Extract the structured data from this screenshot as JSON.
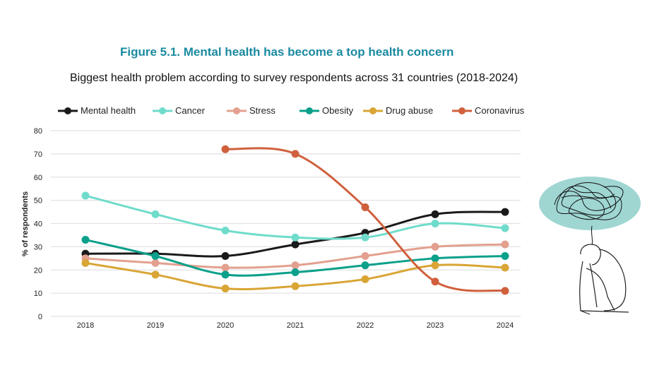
{
  "chart_data": {
    "type": "line",
    "title": "Figure 5.1. Mental health has become a top health concern",
    "subtitle": "Biggest health problem according to survey respondents across 31 countries (2018-2024)",
    "xlabel": "",
    "ylabel": "% of respondents",
    "ylim": [
      0,
      80
    ],
    "yticks": [
      "0",
      "10",
      "20",
      "30",
      "40",
      "50",
      "60",
      "70",
      "80"
    ],
    "categories": [
      "2018",
      "2019",
      "2020",
      "2021",
      "2022",
      "2023",
      "2024"
    ],
    "grid": true,
    "legend_position": "top",
    "series": [
      {
        "name": "Mental health",
        "color": "#1a1a1a",
        "values": [
          27,
          27,
          26,
          31,
          36,
          44,
          45
        ]
      },
      {
        "name": "Cancer",
        "color": "#6fdccb",
        "values": [
          52,
          44,
          37,
          34,
          34,
          40,
          38
        ]
      },
      {
        "name": "Stress",
        "color": "#e3a08f",
        "values": [
          25,
          23,
          21,
          22,
          26,
          30,
          31
        ]
      },
      {
        "name": "Obesity",
        "color": "#0aa08a",
        "values": [
          33,
          26,
          18,
          19,
          22,
          25,
          26
        ]
      },
      {
        "name": "Drug abuse",
        "color": "#d9a535",
        "values": [
          23,
          18,
          12,
          13,
          16,
          22,
          21
        ]
      },
      {
        "name": "Coronavirus",
        "color": "#d0603d",
        "values": [
          null,
          null,
          72,
          70,
          47,
          15,
          11
        ]
      }
    ]
  }
}
